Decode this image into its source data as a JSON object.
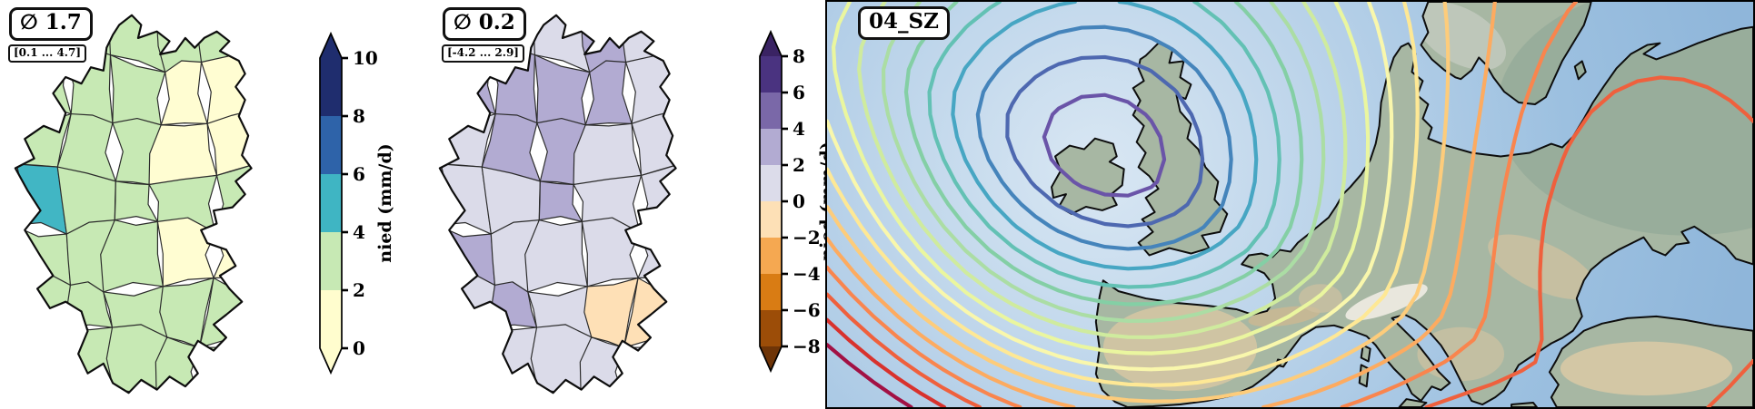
{
  "panel1": {
    "mean_label": "∅ 1.7",
    "range_label": "[0.1 ... 4.7]",
    "colorbar": {
      "label": "nied (mm/d)",
      "ticks": [
        "10",
        "8",
        "6",
        "4",
        "2",
        "0"
      ],
      "segment_colors": [
        "#1f2d6e",
        "#2e63a9",
        "#3fb5c3",
        "#c7e9b4",
        "#fffdce"
      ],
      "arrow_top_color": "#1f2d6e",
      "arrow_bottom_color": "#fffdce"
    },
    "region_palette": {
      "G": "#c7e9b4",
      "Y": "#fffdd2",
      "T": "#41b6c4"
    },
    "region_fills": [
      "G",
      "G",
      "G",
      "G",
      "G",
      "G",
      "G",
      "G",
      "Y",
      "Y",
      "G",
      "G",
      "G",
      "Y",
      "Y",
      "T",
      "G",
      "G",
      "G",
      "G",
      "G",
      "G",
      "G",
      "Y",
      "Y",
      "G",
      "G",
      "G",
      "G",
      "G",
      "G",
      "G",
      "G",
      "G",
      "G"
    ]
  },
  "panel2": {
    "mean_label": "∅ 0.2",
    "range_label": "[-4.2 ... 2.9]",
    "colorbar": {
      "label": "nied (mm/d)",
      "ticks": [
        "8",
        "6",
        "4",
        "2",
        "0",
        "−2",
        "−4",
        "−6",
        "−8"
      ],
      "segment_colors": [
        "#4a3380",
        "#7a68a8",
        "#b2abd2",
        "#dcdcea",
        "#fde0b6",
        "#f5a851",
        "#d97c14",
        "#9c4d08"
      ],
      "arrow_top_color": "#3a2363",
      "arrow_bottom_color": "#6e3407"
    },
    "region_palette": {
      "L": "#dbdbe9",
      "P": "#b2abd2",
      "O": "#fee0b6"
    },
    "region_fills": [
      "L",
      "L",
      "L",
      "P",
      "L",
      "P",
      "P",
      "P",
      "P",
      "L",
      "L",
      "P",
      "P",
      "L",
      "L",
      "L",
      "L",
      "P",
      "L",
      "L",
      "P",
      "L",
      "L",
      "L",
      "L",
      "L",
      "P",
      "L",
      "O",
      "O",
      "L",
      "L",
      "L",
      "L",
      "L"
    ]
  },
  "panel3": {
    "title": "04_SZ",
    "ocean_colors": [
      "#d9e7f3",
      "#bcd4ea",
      "#9cc0e0",
      "#8fb6da"
    ],
    "land_color": "#a7b7a3",
    "coast_color": "#0d0d0d",
    "contour_colors": [
      "#6a54a8",
      "#4e68b0",
      "#4584bb",
      "#47a6c3",
      "#63c1b4",
      "#84cfa5",
      "#abdda4",
      "#cfeb9e",
      "#eaf69f",
      "#f9f7ac",
      "#fee895",
      "#fdcc7b",
      "#fdab60",
      "#f9854e",
      "#ef603d",
      "#d8322d",
      "#a21144"
    ]
  },
  "chart_data": [
    {
      "type": "choropleth",
      "region": "Germany districts",
      "variable": "nied (mm/d)",
      "mean": 1.7,
      "range": [
        0.1,
        4.7
      ],
      "colorbar_ticks": [
        0,
        2,
        4,
        6,
        8,
        10
      ],
      "colormap": "YlGnBu discrete, arrows both ends"
    },
    {
      "type": "choropleth",
      "region": "Germany districts",
      "variable": "nied (mm/d)",
      "mean": 0.2,
      "range": [
        -4.2,
        2.9
      ],
      "colorbar_ticks": [
        -8,
        -6,
        -4,
        -2,
        0,
        2,
        4,
        6,
        8
      ],
      "colormap": "PuOr diverging (purple positive, orange negative), arrows both ends"
    },
    {
      "type": "contour_map",
      "title": "04_SZ",
      "region": "Europe / North Atlantic",
      "description": "rainbow contour lines around a low centered near Ireland, values increasing to crimson toward the southwest corner and orange closed ridge over eastern Europe"
    }
  ]
}
